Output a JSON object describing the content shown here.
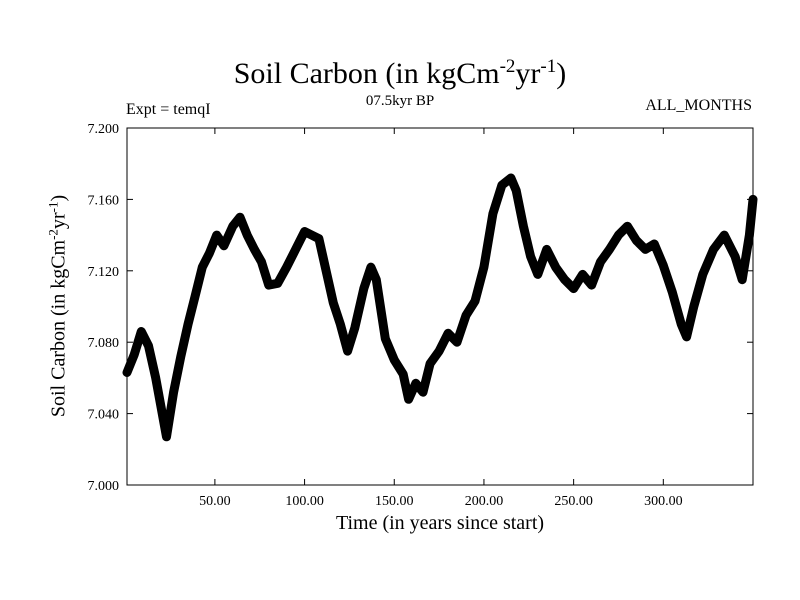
{
  "title": {
    "main": "Soil Carbon (in kgCm",
    "sup1": "-2",
    "mid": "yr",
    "sup2": "-1",
    "end": ")"
  },
  "subtitle": "07.5kyr BP",
  "left_label": "Expt = temqI",
  "right_label": "ALL_MONTHS",
  "chart_data": {
    "type": "line",
    "xlabel": "Time (in years since start)",
    "ylabel": {
      "main": "Soil Carbon (in kgCm",
      "sup1": "-2",
      "mid": "yr",
      "sup2": "-1",
      "end": ")"
    },
    "xlim": [
      1,
      350
    ],
    "ylim": [
      7.0,
      7.2
    ],
    "xticks": [
      50,
      100,
      150,
      200,
      250,
      300
    ],
    "xtick_labels": [
      "50.00",
      "100.00",
      "150.00",
      "200.00",
      "250.00",
      "300.00"
    ],
    "yticks": [
      7.0,
      7.04,
      7.08,
      7.12,
      7.16,
      7.2
    ],
    "ytick_labels": [
      "7.000",
      "7.040",
      "7.080",
      "7.120",
      "7.160",
      "7.200"
    ],
    "line_color": "#000000",
    "series": [
      {
        "x": [
          1,
          5,
          9,
          13,
          17,
          21,
          23,
          27,
          31,
          35,
          39,
          43,
          47,
          51,
          55,
          60,
          64,
          68,
          72,
          76,
          80,
          85,
          90,
          95,
          100,
          104,
          108,
          112,
          116,
          120,
          124,
          128,
          133,
          137,
          140,
          145,
          150,
          155,
          158,
          162,
          166,
          170,
          175,
          180,
          185,
          190,
          195,
          200,
          205,
          210,
          215,
          218,
          222,
          226,
          230,
          235,
          240,
          245,
          250,
          255,
          260,
          265,
          270,
          275,
          280,
          285,
          290,
          295,
          300,
          305,
          310,
          313,
          317,
          322,
          328,
          334,
          340,
          344,
          348,
          350
        ],
        "y": [
          7.063,
          7.073,
          7.086,
          7.078,
          7.06,
          7.038,
          7.027,
          7.052,
          7.072,
          7.09,
          7.106,
          7.122,
          7.13,
          7.14,
          7.134,
          7.145,
          7.15,
          7.14,
          7.132,
          7.125,
          7.112,
          7.113,
          7.122,
          7.132,
          7.142,
          7.14,
          7.138,
          7.12,
          7.102,
          7.09,
          7.075,
          7.088,
          7.11,
          7.122,
          7.115,
          7.082,
          7.07,
          7.062,
          7.048,
          7.057,
          7.052,
          7.068,
          7.075,
          7.085,
          7.08,
          7.095,
          7.103,
          7.122,
          7.152,
          7.168,
          7.172,
          7.165,
          7.145,
          7.128,
          7.118,
          7.132,
          7.122,
          7.115,
          7.11,
          7.118,
          7.112,
          7.125,
          7.132,
          7.14,
          7.145,
          7.137,
          7.132,
          7.135,
          7.123,
          7.108,
          7.09,
          7.083,
          7.1,
          7.118,
          7.132,
          7.14,
          7.128,
          7.115,
          7.14,
          7.16
        ]
      }
    ]
  }
}
